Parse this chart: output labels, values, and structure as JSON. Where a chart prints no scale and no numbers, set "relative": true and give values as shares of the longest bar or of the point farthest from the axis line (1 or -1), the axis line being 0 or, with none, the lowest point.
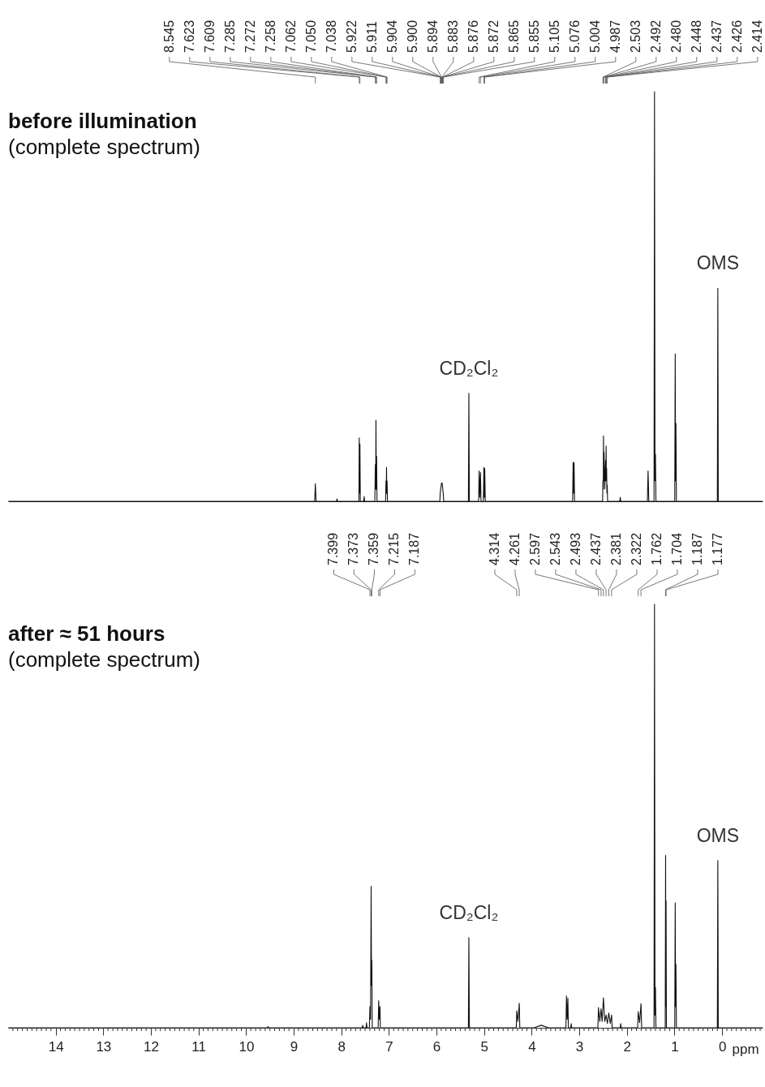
{
  "chart_data": [
    {
      "type": "line",
      "title": "before illumination",
      "subtitle": "(complete spectrum)",
      "relative": true,
      "color": "#111111",
      "xlim": [
        15,
        -0.85
      ],
      "tick_labels": false,
      "x": [
        15,
        8.56,
        8.545,
        8.53,
        8.1,
        8.09,
        8.08,
        7.63,
        7.623,
        7.616,
        7.609,
        7.6,
        7.53,
        7.52,
        7.51,
        7.295,
        7.285,
        7.278,
        7.272,
        7.265,
        7.258,
        7.25,
        7.07,
        7.062,
        7.056,
        7.05,
        7.044,
        7.038,
        7.03,
        5.93,
        5.922,
        5.911,
        5.9,
        5.894,
        5.883,
        5.872,
        5.865,
        5.855,
        5.85,
        5.33,
        5.32,
        5.31,
        5.115,
        5.105,
        5.09,
        5.076,
        5.065,
        5.015,
        5.004,
        4.995,
        4.987,
        4.975,
        3.14,
        3.13,
        3.12,
        3.11,
        3.1,
        2.51,
        2.503,
        2.497,
        2.492,
        2.486,
        2.48,
        2.465,
        2.448,
        2.443,
        2.437,
        2.431,
        2.426,
        2.42,
        2.414,
        2.405,
        2.15,
        2.14,
        2.13,
        1.57,
        1.555,
        1.54,
        1.43,
        1.42,
        1.41,
        1.4,
        1.39,
        0.995,
        0.985,
        0.977,
        0.97,
        0.96,
        0.1,
        0.09,
        0.08,
        -0.85
      ],
      "values": [
        0,
        0,
        0.043,
        0,
        0,
        0.006,
        0,
        0,
        0.155,
        0.02,
        0.14,
        0,
        0,
        0.012,
        0,
        0,
        0.09,
        0.03,
        0.198,
        0.03,
        0.11,
        0,
        0,
        0.05,
        0.02,
        0.083,
        0.02,
        0.05,
        0,
        0,
        0.02,
        0.03,
        0.04,
        0.045,
        0.045,
        0.035,
        0.025,
        0.015,
        0,
        0,
        0.264,
        0,
        0,
        0.074,
        0.01,
        0.07,
        0,
        0,
        0.083,
        0.01,
        0.08,
        0,
        0,
        0.095,
        0.02,
        0.095,
        0,
        0,
        0.05,
        0.03,
        0.16,
        0.05,
        0.12,
        0.03,
        0.1,
        0.05,
        0.135,
        0.05,
        0.08,
        0.02,
        0.04,
        0,
        0,
        0.01,
        0,
        0,
        0.074,
        0,
        0,
        1,
        0.05,
        0.115,
        0,
        0,
        0.36,
        0.05,
        0.19,
        0,
        0,
        0.52,
        0,
        0
      ],
      "annotations": [
        {
          "text": "8.545",
          "x": 8.545
        },
        {
          "text": "7.623",
          "x": 7.623
        },
        {
          "text": "7.609",
          "x": 7.609
        },
        {
          "text": "7.285",
          "x": 7.285
        },
        {
          "text": "7.272",
          "x": 7.272
        },
        {
          "text": "7.258",
          "x": 7.258
        },
        {
          "text": "7.062",
          "x": 7.062
        },
        {
          "text": "7.050",
          "x": 7.05
        },
        {
          "text": "7.038",
          "x": 7.038
        },
        {
          "text": "5.922",
          "x": 5.922
        },
        {
          "text": "5.911",
          "x": 5.911
        },
        {
          "text": "5.904",
          "x": 5.904
        },
        {
          "text": "5.900",
          "x": 5.9
        },
        {
          "text": "5.894",
          "x": 5.894
        },
        {
          "text": "5.883",
          "x": 5.883
        },
        {
          "text": "5.876",
          "x": 5.876
        },
        {
          "text": "5.872",
          "x": 5.872
        },
        {
          "text": "5.865",
          "x": 5.865
        },
        {
          "text": "5.855",
          "x": 5.855
        },
        {
          "text": "5.105",
          "x": 5.105
        },
        {
          "text": "5.076",
          "x": 5.076
        },
        {
          "text": "5.004",
          "x": 5.004
        },
        {
          "text": "4.987",
          "x": 4.987
        },
        {
          "text": "2.503",
          "x": 2.503
        },
        {
          "text": "2.492",
          "x": 2.492
        },
        {
          "text": "2.480",
          "x": 2.48
        },
        {
          "text": "2.448",
          "x": 2.448
        },
        {
          "text": "2.437",
          "x": 2.437
        },
        {
          "text": "2.426",
          "x": 2.426
        },
        {
          "text": "2.414",
          "x": 2.414
        },
        {
          "text": "CD₂Cl₂",
          "x": 5.32,
          "y": 0.264
        },
        {
          "text": "OMS",
          "x": 0.09,
          "y": 0.52
        }
      ]
    },
    {
      "type": "line",
      "title": "after ≈ 51 hours",
      "subtitle": "(complete spectrum)",
      "relative": true,
      "color": "#111111",
      "xlim": [
        15,
        -0.85
      ],
      "tick_labels": "x",
      "xlabel": "ppm",
      "x": [
        15,
        9.55,
        9.54,
        9.53,
        7.56,
        7.55,
        7.54,
        7.48,
        7.47,
        7.46,
        7.41,
        7.399,
        7.386,
        7.373,
        7.366,
        7.359,
        7.35,
        7.225,
        7.215,
        7.201,
        7.187,
        7.18,
        5.33,
        5.32,
        5.31,
        4.325,
        4.314,
        4.29,
        4.261,
        4.25,
        3.95,
        3.8,
        3.65,
        3.28,
        3.27,
        3.255,
        3.24,
        3.23,
        3.18,
        3.17,
        3.16,
        2.61,
        2.597,
        2.57,
        2.543,
        2.52,
        2.493,
        2.465,
        2.437,
        2.41,
        2.381,
        2.35,
        2.322,
        2.31,
        2.14,
        2.13,
        2.12,
        1.775,
        1.762,
        1.733,
        1.704,
        1.69,
        1.43,
        1.42,
        1.41,
        1.4,
        1.39,
        1.195,
        1.187,
        1.182,
        1.177,
        1.17,
        0.995,
        0.985,
        0.977,
        0.97,
        0.96,
        0.1,
        0.09,
        0.08,
        -0.85
      ],
      "values": [
        0,
        0,
        0.003,
        0,
        0,
        0.006,
        0,
        0,
        0.012,
        0,
        0,
        0.05,
        0.02,
        0.334,
        0.1,
        0.16,
        0,
        0,
        0.064,
        0.02,
        0.05,
        0,
        0,
        0.213,
        0,
        0,
        0.04,
        0.015,
        0.058,
        0,
        0,
        0.006,
        0,
        0,
        0.075,
        0.02,
        0.07,
        0,
        0,
        0.01,
        0,
        0,
        0.048,
        0.015,
        0.045,
        0.015,
        0.071,
        0.015,
        0.03,
        0.01,
        0.035,
        0.01,
        0.03,
        0,
        0,
        0.01,
        0,
        0,
        0.038,
        0.012,
        0.057,
        0,
        0,
        1,
        0.03,
        0.095,
        0,
        0,
        0.407,
        0.05,
        0.3,
        0,
        0,
        0.295,
        0.05,
        0.15,
        0,
        0,
        0.395,
        0,
        0
      ],
      "annotations": [
        {
          "text": "7.399",
          "x": 7.399
        },
        {
          "text": "7.373",
          "x": 7.373
        },
        {
          "text": "7.359",
          "x": 7.359
        },
        {
          "text": "7.215",
          "x": 7.215
        },
        {
          "text": "7.187",
          "x": 7.187
        },
        {
          "text": "4.314",
          "x": 4.314
        },
        {
          "text": "4.261",
          "x": 4.261
        },
        {
          "text": "2.597",
          "x": 2.597
        },
        {
          "text": "2.543",
          "x": 2.543
        },
        {
          "text": "2.493",
          "x": 2.493
        },
        {
          "text": "2.437",
          "x": 2.437
        },
        {
          "text": "2.381",
          "x": 2.381
        },
        {
          "text": "2.322",
          "x": 2.322
        },
        {
          "text": "1.762",
          "x": 1.762
        },
        {
          "text": "1.704",
          "x": 1.704
        },
        {
          "text": "1.187",
          "x": 1.187
        },
        {
          "text": "1.177",
          "x": 1.177
        },
        {
          "text": "CD₂Cl₂",
          "x": 5.32,
          "y": 0.213
        },
        {
          "text": "OMS",
          "x": 0.09,
          "y": 0.395
        }
      ],
      "xticks": [
        {
          "value": 14.9,
          "label": null
        },
        {
          "value": 14.8,
          "label": null
        },
        {
          "value": 14.7,
          "label": null
        },
        {
          "value": 14.6,
          "label": null
        },
        {
          "value": 14.5,
          "label": null
        },
        {
          "value": 14.4,
          "label": null
        },
        {
          "value": 14.3,
          "label": null
        },
        {
          "value": 14.2,
          "label": null
        },
        {
          "value": 14.1,
          "label": null
        },
        14,
        {
          "value": 13.9,
          "label": null
        },
        {
          "value": 13.8,
          "label": null
        },
        {
          "value": 13.7,
          "label": null
        },
        {
          "value": 13.6,
          "label": null
        },
        {
          "value": 13.5,
          "label": null
        },
        {
          "value": 13.4,
          "label": null
        },
        {
          "value": 13.3,
          "label": null
        },
        {
          "value": 13.2,
          "label": null
        },
        {
          "value": 13.1,
          "label": null
        },
        13,
        {
          "value": 12.9,
          "label": null
        },
        {
          "value": 12.8,
          "label": null
        },
        {
          "value": 12.7,
          "label": null
        },
        {
          "value": 12.6,
          "label": null
        },
        {
          "value": 12.5,
          "label": null
        },
        {
          "value": 12.4,
          "label": null
        },
        {
          "value": 12.3,
          "label": null
        },
        {
          "value": 12.2,
          "label": null
        },
        {
          "value": 12.1,
          "label": null
        },
        12,
        {
          "value": 11.9,
          "label": null
        },
        {
          "value": 11.8,
          "label": null
        },
        {
          "value": 11.7,
          "label": null
        },
        {
          "value": 11.6,
          "label": null
        },
        {
          "value": 11.5,
          "label": null
        },
        {
          "value": 11.4,
          "label": null
        },
        {
          "value": 11.3,
          "label": null
        },
        {
          "value": 11.2,
          "label": null
        },
        {
          "value": 11.1,
          "label": null
        },
        11,
        {
          "value": 10.9,
          "label": null
        },
        {
          "value": 10.8,
          "label": null
        },
        {
          "value": 10.7,
          "label": null
        },
        {
          "value": 10.6,
          "label": null
        },
        {
          "value": 10.5,
          "label": null
        },
        {
          "value": 10.4,
          "label": null
        },
        {
          "value": 10.3,
          "label": null
        },
        {
          "value": 10.2,
          "label": null
        },
        {
          "value": 10.1,
          "label": null
        },
        10,
        {
          "value": 9.9,
          "label": null
        },
        {
          "value": 9.8,
          "label": null
        },
        {
          "value": 9.7,
          "label": null
        },
        {
          "value": 9.6,
          "label": null
        },
        {
          "value": 9.5,
          "label": null
        },
        {
          "value": 9.4,
          "label": null
        },
        {
          "value": 9.3,
          "label": null
        },
        {
          "value": 9.2,
          "label": null
        },
        {
          "value": 9.1,
          "label": null
        },
        9,
        {
          "value": 8.9,
          "label": null
        },
        {
          "value": 8.8,
          "label": null
        },
        {
          "value": 8.7,
          "label": null
        },
        {
          "value": 8.6,
          "label": null
        },
        {
          "value": 8.5,
          "label": null
        },
        {
          "value": 8.4,
          "label": null
        },
        {
          "value": 8.3,
          "label": null
        },
        {
          "value": 8.2,
          "label": null
        },
        {
          "value": 8.1,
          "label": null
        },
        8,
        {
          "value": 7.9,
          "label": null
        },
        {
          "value": 7.8,
          "label": null
        },
        {
          "value": 7.7,
          "label": null
        },
        {
          "value": 7.6,
          "label": null
        },
        {
          "value": 7.5,
          "label": null
        },
        {
          "value": 7.4,
          "label": null
        },
        {
          "value": 7.3,
          "label": null
        },
        {
          "value": 7.2,
          "label": null
        },
        {
          "value": 7.1,
          "label": null
        },
        7,
        {
          "value": 6.9,
          "label": null
        },
        {
          "value": 6.8,
          "label": null
        },
        {
          "value": 6.7,
          "label": null
        },
        {
          "value": 6.6,
          "label": null
        },
        {
          "value": 6.5,
          "label": null
        },
        {
          "value": 6.4,
          "label": null
        },
        {
          "value": 6.3,
          "label": null
        },
        {
          "value": 6.2,
          "label": null
        },
        {
          "value": 6.1,
          "label": null
        },
        6,
        {
          "value": 5.9,
          "label": null
        },
        {
          "value": 5.8,
          "label": null
        },
        {
          "value": 5.7,
          "label": null
        },
        {
          "value": 5.6,
          "label": null
        },
        {
          "value": 5.5,
          "label": null
        },
        {
          "value": 5.4,
          "label": null
        },
        {
          "value": 5.3,
          "label": null
        },
        {
          "value": 5.2,
          "label": null
        },
        {
          "value": 5.1,
          "label": null
        },
        5,
        {
          "value": 4.9,
          "label": null
        },
        {
          "value": 4.8,
          "label": null
        },
        {
          "value": 4.7,
          "label": null
        },
        {
          "value": 4.6,
          "label": null
        },
        {
          "value": 4.5,
          "label": null
        },
        {
          "value": 4.4,
          "label": null
        },
        {
          "value": 4.3,
          "label": null
        },
        {
          "value": 4.2,
          "label": null
        },
        {
          "value": 4.1,
          "label": null
        },
        4,
        {
          "value": 3.9,
          "label": null
        },
        {
          "value": 3.8,
          "label": null
        },
        {
          "value": 3.7,
          "label": null
        },
        {
          "value": 3.6,
          "label": null
        },
        {
          "value": 3.5,
          "label": null
        },
        {
          "value": 3.4,
          "label": null
        },
        {
          "value": 3.3,
          "label": null
        },
        {
          "value": 3.2,
          "label": null
        },
        {
          "value": 3.1,
          "label": null
        },
        3,
        {
          "value": 2.9,
          "label": null
        },
        {
          "value": 2.8,
          "label": null
        },
        {
          "value": 2.7,
          "label": null
        },
        {
          "value": 2.6,
          "label": null
        },
        {
          "value": 2.5,
          "label": null
        },
        {
          "value": 2.4,
          "label": null
        },
        {
          "value": 2.3,
          "label": null
        },
        {
          "value": 2.2,
          "label": null
        },
        {
          "value": 2.1,
          "label": null
        },
        2,
        {
          "value": 1.9,
          "label": null
        },
        {
          "value": 1.8,
          "label": null
        },
        {
          "value": 1.7,
          "label": null
        },
        {
          "value": 1.6,
          "label": null
        },
        {
          "value": 1.5,
          "label": null
        },
        {
          "value": 1.4,
          "label": null
        },
        {
          "value": 1.3,
          "label": null
        },
        {
          "value": 1.2,
          "label": null
        },
        {
          "value": 1.1,
          "label": null
        },
        1,
        {
          "value": 0.9,
          "label": null
        },
        {
          "value": 0.8,
          "label": null
        },
        {
          "value": 0.7,
          "label": null
        },
        {
          "value": 0.6,
          "label": null
        },
        {
          "value": 0.5,
          "label": null
        },
        {
          "value": 0.4,
          "label": null
        },
        {
          "value": 0.3,
          "label": null
        },
        {
          "value": 0.2,
          "label": null
        },
        {
          "value": 0.1,
          "label": null
        },
        0,
        {
          "value": -0.1,
          "label": null
        },
        {
          "value": -0.2,
          "label": null
        },
        {
          "value": -0.3,
          "label": null
        },
        {
          "value": -0.4,
          "label": null
        },
        {
          "value": -0.5,
          "label": null
        },
        {
          "value": -0.6,
          "label": null
        },
        {
          "value": -0.7,
          "label": null
        },
        {
          "value": -0.8,
          "label": null
        }
      ]
    }
  ]
}
